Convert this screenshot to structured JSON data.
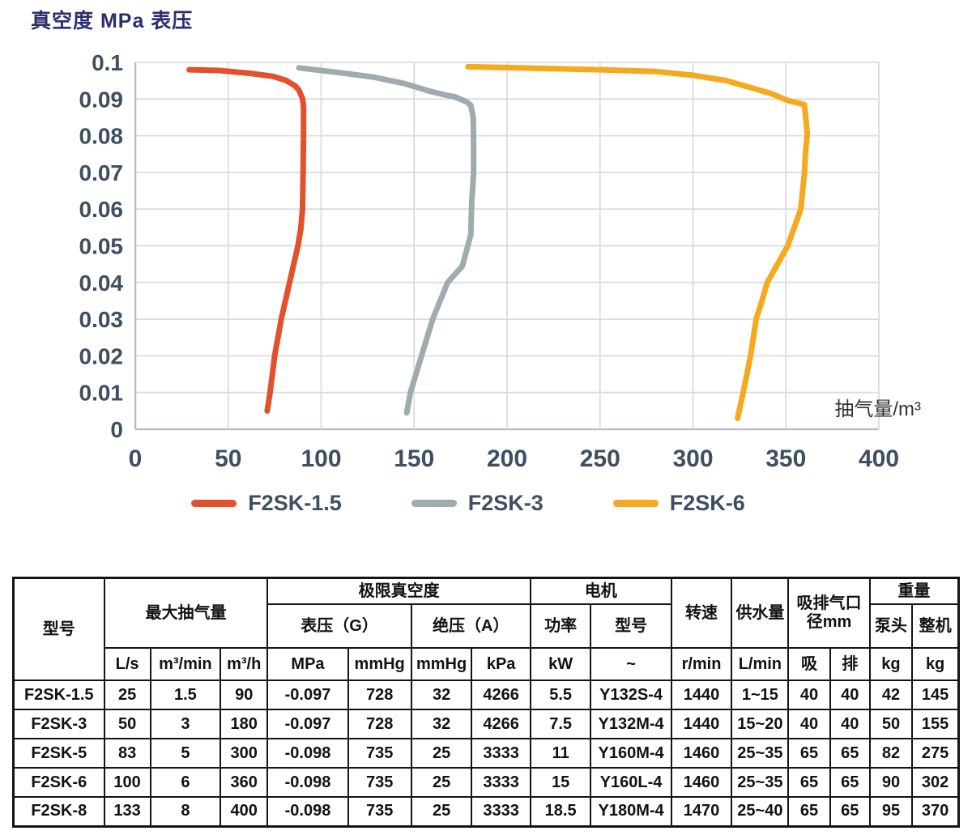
{
  "chart_data": {
    "type": "line",
    "title": "真空度 MPa 表压",
    "xlabel": "抽气量/m³",
    "ylabel": "真空度 MPa 表压",
    "xlim": [
      0,
      400
    ],
    "ylim": [
      0,
      0.1
    ],
    "grid": true,
    "legend_position": "bottom",
    "x_ticks": [
      0,
      50,
      100,
      150,
      200,
      250,
      300,
      350,
      400
    ],
    "y_ticks": [
      "0",
      "0.01",
      "0.02",
      "0.03",
      "0.04",
      "0.05",
      "0.06",
      "0.07",
      "0.08",
      "0.09",
      "0.1"
    ],
    "series": [
      {
        "name": "F2SK-1.5",
        "color": "#E2512B",
        "points": [
          [
            29,
            0.098
          ],
          [
            45,
            0.0978
          ],
          [
            62,
            0.097
          ],
          [
            74,
            0.0962
          ],
          [
            81,
            0.0951
          ],
          [
            86,
            0.0936
          ],
          [
            88,
            0.0924
          ],
          [
            89,
            0.0913
          ],
          [
            90,
            0.0901
          ],
          [
            90.5,
            0.088
          ],
          [
            90.5,
            0.08
          ],
          [
            90.3,
            0.07
          ],
          [
            90,
            0.06
          ],
          [
            89,
            0.0545
          ],
          [
            87.5,
            0.05
          ],
          [
            83,
            0.04
          ],
          [
            78.5,
            0.03
          ],
          [
            75,
            0.02
          ],
          [
            72.5,
            0.01
          ],
          [
            71,
            0.005
          ]
        ]
      },
      {
        "name": "F2SK-3",
        "color": "#9FABAF",
        "points": [
          [
            88,
            0.0985
          ],
          [
            108,
            0.0973
          ],
          [
            128,
            0.096
          ],
          [
            145,
            0.0942
          ],
          [
            158,
            0.0922
          ],
          [
            166,
            0.0912
          ],
          [
            172,
            0.0906
          ],
          [
            178,
            0.0893
          ],
          [
            180.5,
            0.0883
          ],
          [
            181.8,
            0.085
          ],
          [
            182,
            0.078
          ],
          [
            182,
            0.07
          ],
          [
            181,
            0.062
          ],
          [
            180.5,
            0.053
          ],
          [
            176,
            0.0445
          ],
          [
            168,
            0.04
          ],
          [
            160,
            0.03
          ],
          [
            154,
            0.02
          ],
          [
            148,
            0.01
          ],
          [
            146,
            0.0045
          ]
        ]
      },
      {
        "name": "F2SK-6",
        "color": "#F5A91E",
        "points": [
          [
            179,
            0.0988
          ],
          [
            215,
            0.0984
          ],
          [
            250,
            0.098
          ],
          [
            280,
            0.0975
          ],
          [
            300,
            0.0965
          ],
          [
            318,
            0.095
          ],
          [
            332,
            0.093
          ],
          [
            342,
            0.0915
          ],
          [
            351,
            0.0896
          ],
          [
            357,
            0.0889
          ],
          [
            360,
            0.0884
          ],
          [
            361.5,
            0.0805
          ],
          [
            360.5,
            0.075
          ],
          [
            360,
            0.07
          ],
          [
            358,
            0.06
          ],
          [
            351,
            0.05
          ],
          [
            340,
            0.04
          ],
          [
            336.5,
            0.034
          ],
          [
            334,
            0.03
          ],
          [
            331,
            0.02
          ],
          [
            327,
            0.01
          ],
          [
            324,
            0.003
          ]
        ]
      }
    ]
  },
  "table": {
    "header": {
      "model": "型号",
      "max_capacity": "最大抽气量",
      "capacity_units": [
        "L/s",
        "m³/min",
        "m³/h"
      ],
      "ultimate_vacuum": "极限真空度",
      "gauge": "表压（G）",
      "absolute": "绝压（A）",
      "vacuum_units": [
        "MPa",
        "mmHg",
        "mmHg",
        "kPa"
      ],
      "motor": "电机",
      "motor_power": "功率",
      "motor_model": "型号",
      "motor_power_unit": "kW",
      "motor_model_unit": "~",
      "speed": "转速",
      "speed_unit": "r/min",
      "water": "供水量",
      "water_unit": "L/min",
      "port": "吸排气口径mm",
      "port_in": "吸",
      "port_out": "排",
      "weight": "重量",
      "weight_pump": "泵头",
      "weight_total": "整机",
      "weight_pump_unit": "kg",
      "weight_total_unit": "kg"
    },
    "rows": [
      [
        "F2SK-1.5",
        "25",
        "1.5",
        "90",
        "-0.097",
        "728",
        "32",
        "4266",
        "5.5",
        "Y132S-4",
        "1440",
        "1~15",
        "40",
        "40",
        "42",
        "145"
      ],
      [
        "F2SK-3",
        "50",
        "3",
        "180",
        "-0.097",
        "728",
        "32",
        "4266",
        "7.5",
        "Y132M-4",
        "1440",
        "15~20",
        "40",
        "40",
        "50",
        "155"
      ],
      [
        "F2SK-5",
        "83",
        "5",
        "300",
        "-0.098",
        "735",
        "25",
        "3333",
        "11",
        "Y160M-4",
        "1460",
        "25~35",
        "65",
        "65",
        "82",
        "275"
      ],
      [
        "F2SK-6",
        "100",
        "6",
        "360",
        "-0.098",
        "735",
        "25",
        "3333",
        "15",
        "Y160L-4",
        "1460",
        "25~35",
        "65",
        "65",
        "90",
        "302"
      ],
      [
        "F2SK-8",
        "133",
        "8",
        "400",
        "-0.098",
        "735",
        "25",
        "3333",
        "18.5",
        "Y180M-4",
        "1470",
        "25~40",
        "65",
        "65",
        "95",
        "370"
      ]
    ]
  },
  "colors": {
    "title": "#2B2F6D",
    "axis_text": "#3E4F62",
    "gridline": "#D9DDE0",
    "axis_line": "#B9BFC4",
    "table_border": "#141414"
  }
}
